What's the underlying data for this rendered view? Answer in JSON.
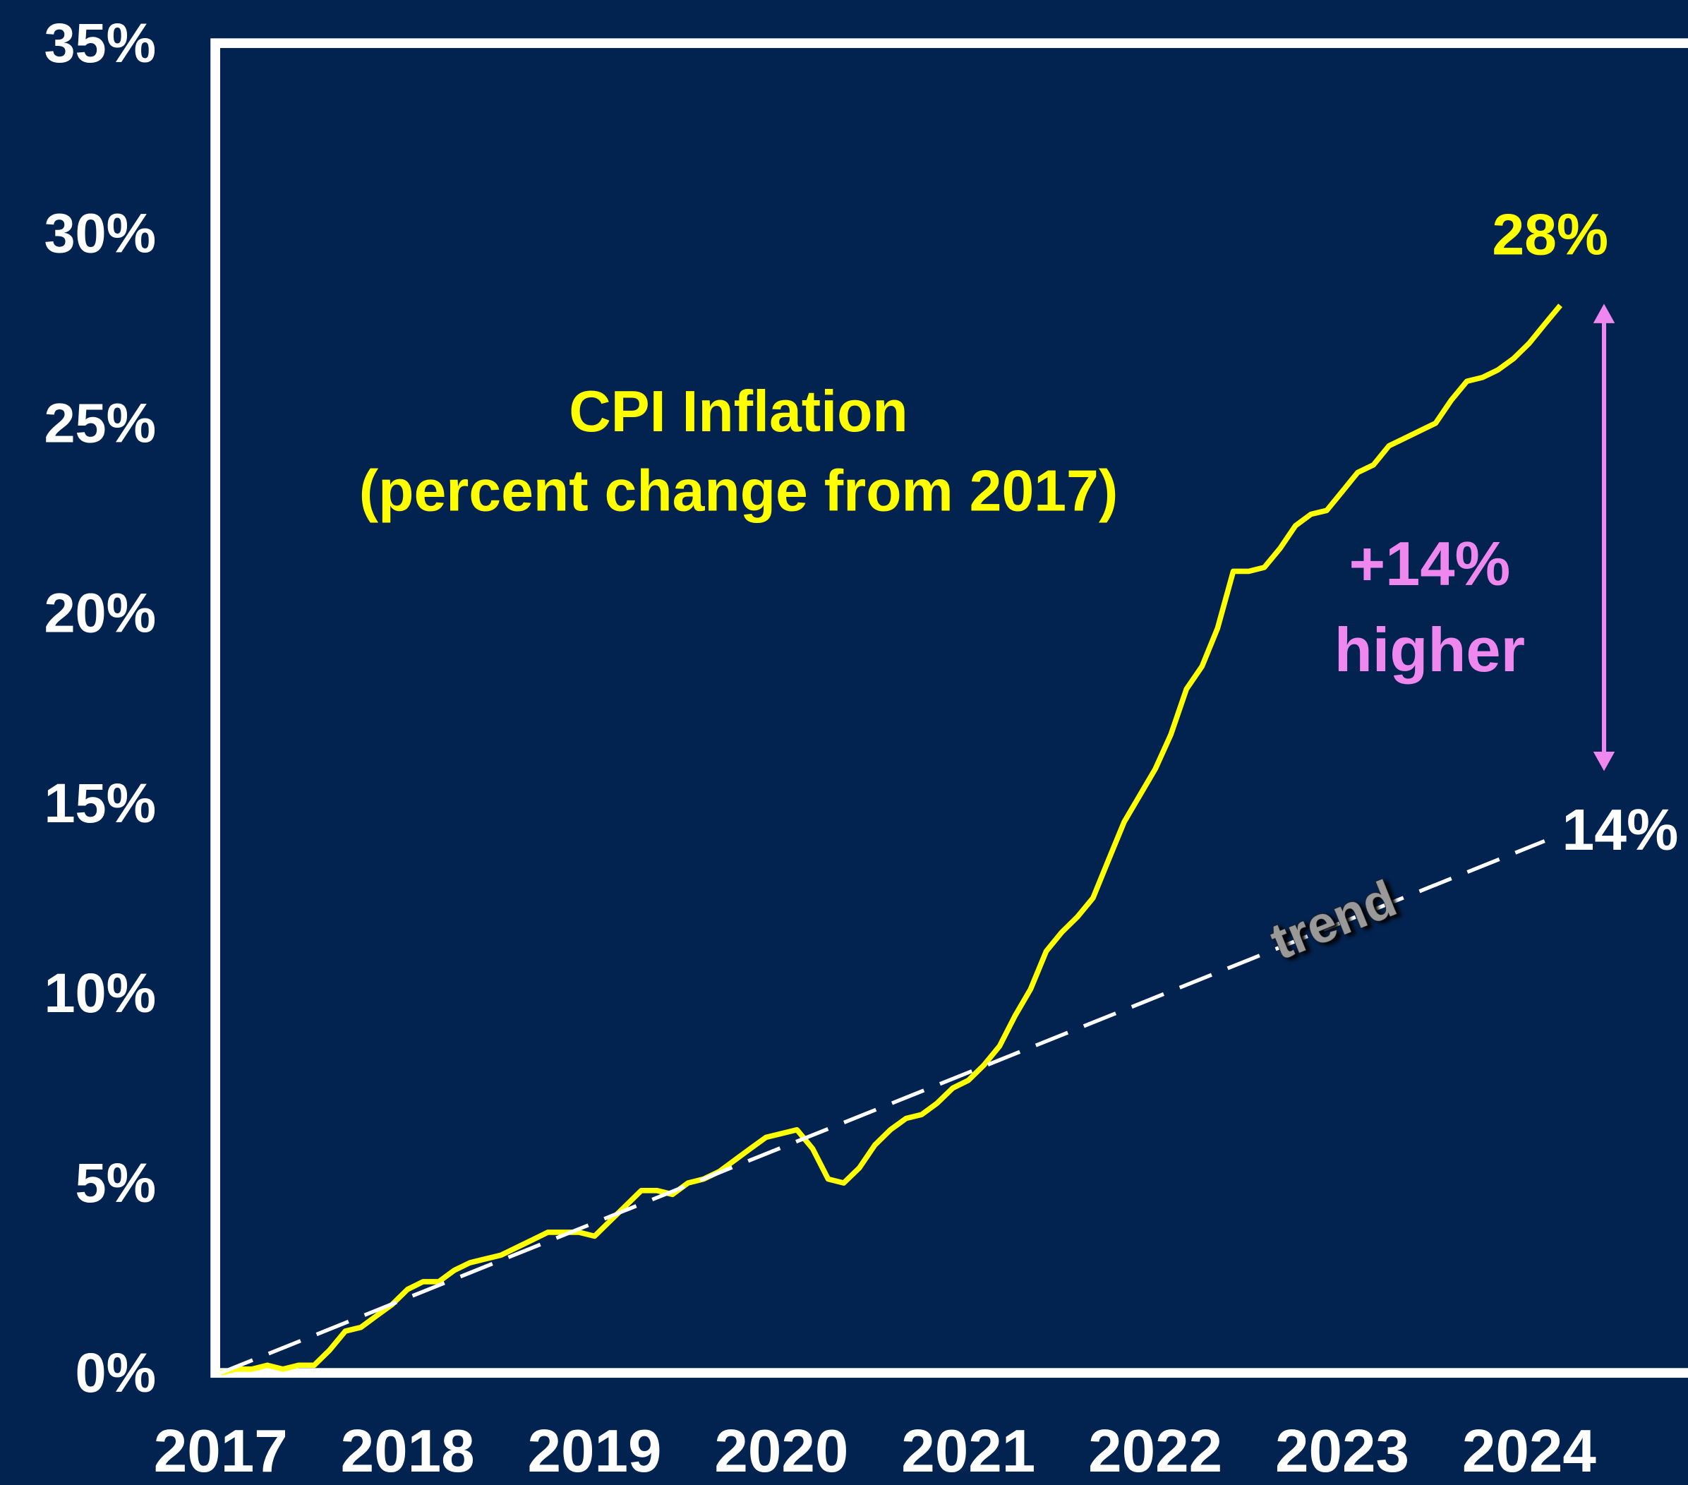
{
  "chart_data": {
    "type": "line",
    "title": "CPI Inflation",
    "subtitle": "(percent change from 2017)",
    "xlim": [
      2017,
      2024.85
    ],
    "xticks": [
      2017,
      2018,
      2019,
      2020,
      2021,
      2022,
      2023,
      2024
    ],
    "ylim": [
      0,
      35
    ],
    "yticks": [
      {
        "value": 0,
        "label": "0%"
      },
      {
        "value": 5,
        "label": "5%"
      },
      {
        "value": 10,
        "label": "10%"
      },
      {
        "value": 15,
        "label": "15%"
      },
      {
        "value": 20,
        "label": "20%"
      },
      {
        "value": 25,
        "label": "25%"
      },
      {
        "value": 30,
        "label": "30%"
      },
      {
        "value": 35,
        "label": "35%"
      }
    ],
    "grid": false,
    "legend": false,
    "series": [
      {
        "color": "#ffff00",
        "style": "solid",
        "x": [
          2017,
          2017.083,
          2017.167,
          2017.25,
          2017.333,
          2017.417,
          2017.5,
          2017.583,
          2017.667,
          2017.75,
          2017.833,
          2017.917,
          2018,
          2018.083,
          2018.167,
          2018.25,
          2018.333,
          2018.417,
          2018.5,
          2018.583,
          2018.667,
          2018.75,
          2018.833,
          2018.917,
          2019,
          2019.083,
          2019.167,
          2019.25,
          2019.333,
          2019.417,
          2019.5,
          2019.583,
          2019.667,
          2019.75,
          2019.833,
          2019.917,
          2020,
          2020.083,
          2020.167,
          2020.25,
          2020.333,
          2020.417,
          2020.5,
          2020.583,
          2020.667,
          2020.75,
          2020.833,
          2020.917,
          2021,
          2021.083,
          2021.167,
          2021.25,
          2021.333,
          2021.417,
          2021.5,
          2021.583,
          2021.667,
          2021.75,
          2021.833,
          2021.917,
          2022,
          2022.083,
          2022.167,
          2022.25,
          2022.333,
          2022.417,
          2022.5,
          2022.583,
          2022.667,
          2022.75,
          2022.833,
          2022.917,
          2023,
          2023.083,
          2023.167,
          2023.25,
          2023.333,
          2023.417,
          2023.5,
          2023.583,
          2023.667,
          2023.75,
          2023.833,
          2023.917,
          2024,
          2024.083,
          2024.167
        ],
        "values": [
          0,
          0.1,
          0.1,
          0.2,
          0.1,
          0.2,
          0.2,
          0.6,
          1.1,
          1.2,
          1.5,
          1.8,
          2.2,
          2.4,
          2.4,
          2.7,
          2.9,
          3.0,
          3.1,
          3.3,
          3.5,
          3.7,
          3.7,
          3.7,
          3.6,
          4.0,
          4.4,
          4.8,
          4.8,
          4.7,
          5.0,
          5.1,
          5.3,
          5.6,
          5.9,
          6.2,
          6.3,
          6.4,
          5.9,
          5.1,
          5.0,
          5.4,
          6.0,
          6.4,
          6.7,
          6.8,
          7.1,
          7.5,
          7.7,
          8.1,
          8.6,
          9.4,
          10.1,
          11.1,
          11.6,
          12.0,
          12.5,
          13.5,
          14.5,
          15.2,
          15.9,
          16.8,
          18.0,
          18.6,
          19.6,
          21.1,
          21.1,
          21.2,
          21.7,
          22.3,
          22.6,
          22.7,
          23.2,
          23.7,
          23.9,
          24.4,
          24.6,
          24.8,
          25.0,
          25.6,
          26.1,
          26.2,
          26.4,
          26.7,
          27.1,
          27.6,
          28.1
        ]
      },
      {
        "name": "trend",
        "color": "#ffffff",
        "style": "dashed",
        "x": [
          2017,
          2024.083
        ],
        "values": [
          0,
          14
        ]
      }
    ],
    "annotations": [
      "28%",
      "14%",
      "+14%",
      "higher"
    ]
  }
}
